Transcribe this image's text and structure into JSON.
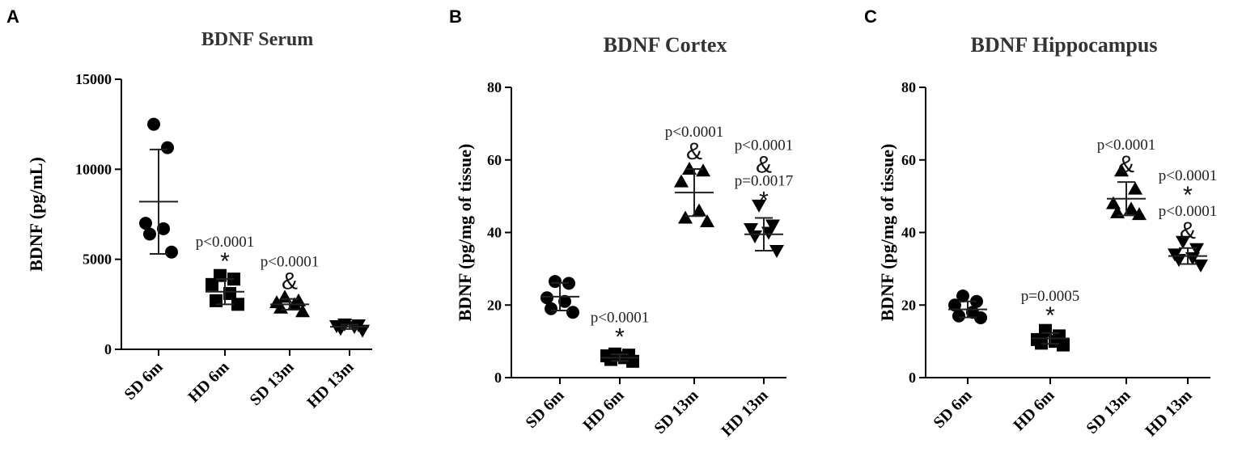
{
  "chart_data": [
    {
      "type": "scatter",
      "panel": "A",
      "title": "BDNF Serum",
      "ylabel": "BDNF (pg/mL)",
      "ylim": [
        0,
        15000
      ],
      "yticks": [
        0,
        5000,
        10000,
        15000
      ],
      "categories": [
        "SD 6m",
        "HD 6m",
        "SD 13m",
        "HD 13m"
      ],
      "markers": [
        "circle",
        "square",
        "triangle-up",
        "triangle-down"
      ],
      "points": [
        [
          12500,
          11200,
          7000,
          6700,
          6400,
          5400
        ],
        [
          4100,
          3900,
          3600,
          3100,
          2700,
          2500
        ],
        [
          2900,
          2700,
          2600,
          2500,
          2300,
          2100
        ],
        [
          1400,
          1350,
          1300,
          1250,
          1150,
          1050
        ]
      ],
      "mean": [
        8200,
        3200,
        2500,
        1250
      ],
      "sd": [
        2900,
        700,
        300,
        120
      ],
      "annotations": [
        {
          "category": 1,
          "lines": [
            "p<0.0001",
            "*"
          ]
        },
        {
          "category": 2,
          "lines": [
            "p<0.0001",
            "&"
          ]
        }
      ]
    },
    {
      "type": "scatter",
      "panel": "B",
      "title": "BDNF Cortex",
      "ylabel": "BDNF (pg/mg of tissue)",
      "ylim": [
        0,
        80
      ],
      "yticks": [
        0,
        20,
        40,
        60,
        80
      ],
      "categories": [
        "SD 6m",
        "HD 6m",
        "SD 13m",
        "HD 13m"
      ],
      "markers": [
        "circle",
        "square",
        "triangle-up",
        "triangle-down"
      ],
      "points": [
        [
          26.5,
          26,
          22,
          21,
          19,
          18
        ],
        [
          6.5,
          6.2,
          6,
          5.5,
          5,
          4.5
        ],
        [
          57.5,
          57,
          54,
          46,
          44,
          43
        ],
        [
          47.5,
          42,
          41,
          40,
          39,
          35
        ]
      ],
      "mean": [
        22.3,
        5.5,
        51,
        39.5
      ],
      "sd": [
        3.8,
        0.9,
        6.5,
        4.5
      ],
      "annotations": [
        {
          "category": 1,
          "lines": [
            "p<0.0001",
            "*"
          ]
        },
        {
          "category": 2,
          "lines": [
            "p<0.0001",
            "&"
          ]
        },
        {
          "category": 3,
          "lines": [
            "p<0.0001",
            "&",
            "p=0.0017",
            "*"
          ]
        }
      ]
    },
    {
      "type": "scatter",
      "panel": "C",
      "title": "BDNF Hippocampus",
      "ylabel": "BDNF (pg/mg of tissue)",
      "ylim": [
        0,
        80
      ],
      "yticks": [
        0,
        20,
        40,
        60,
        80
      ],
      "categories": [
        "SD 6m",
        "HD 6m",
        "SD 13m",
        "HD 13m"
      ],
      "markers": [
        "circle",
        "square",
        "triangle-up",
        "triangle-down"
      ],
      "points": [
        [
          22.5,
          21,
          20,
          18,
          17,
          16.5
        ],
        [
          13,
          11.5,
          10.5,
          10,
          9.5,
          9
        ],
        [
          57,
          52,
          48,
          46.5,
          45.5,
          45
        ],
        [
          37.5,
          35.5,
          34,
          33,
          32.5,
          31
        ]
      ],
      "mean": [
        18.8,
        10.8,
        49.3,
        33.5
      ],
      "sd": [
        2.2,
        1.5,
        4.6,
        2.2
      ],
      "annotations": [
        {
          "category": 1,
          "lines": [
            "p=0.0005",
            "*"
          ]
        },
        {
          "category": 2,
          "lines": [
            "p<0.0001",
            "&"
          ]
        },
        {
          "category": 3,
          "lines": [
            "p<0.0001",
            "*",
            "p<0.0001",
            "&"
          ]
        }
      ]
    }
  ]
}
